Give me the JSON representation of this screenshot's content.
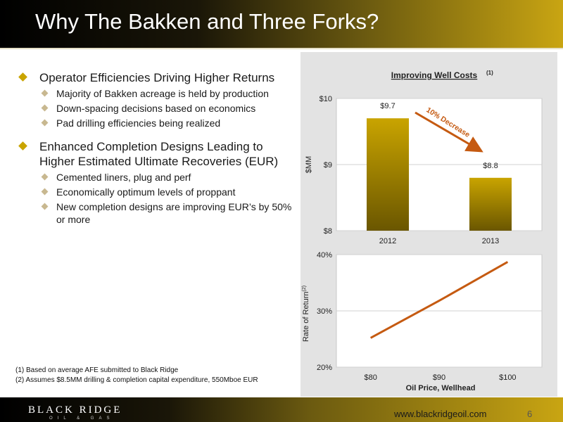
{
  "slide": {
    "title": "Why The Bakken and Three Forks?",
    "page_number": "6",
    "website": "www.blackridgeoil.com",
    "logo": {
      "name": "BLACK RIDGE",
      "subtitle": "OIL & GAS"
    }
  },
  "bullets": [
    {
      "text": "Operator Efficiencies Driving Higher Returns",
      "sub": [
        "Majority of Bakken acreage is held by production",
        "Down-spacing decisions based on economics",
        "Pad drilling efficiencies being realized"
      ]
    },
    {
      "text": "Enhanced Completion Designs Leading to Higher Estimated Ultimate Recoveries (EUR)",
      "sub": [
        "Cemented liners, plug and perf",
        "Economically optimum levels of proppant",
        "New completion designs are improving EUR’s by 50% or more"
      ]
    }
  ],
  "footnotes": [
    "(1)   Based on average AFE submitted to Black Ridge",
    "(2)   Assumes $8.5MM drilling & completion capital expenditure,  550Mboe EUR"
  ],
  "colors": {
    "bar": "#c9a400",
    "bar_dark": "#6a5600",
    "line": "#c55a11",
    "arrow": "#c55a11",
    "accent": "#c9a400"
  },
  "chart_data": [
    {
      "type": "bar",
      "title": "Improving Well Costs",
      "title_sup": "(1)",
      "ylabel": "$MM",
      "categories": [
        "2012",
        "2013"
      ],
      "values": [
        9.7,
        8.8
      ],
      "data_labels": [
        "$9.7",
        "$8.8"
      ],
      "ylim": [
        8,
        10
      ],
      "yticks": [
        8,
        9,
        10
      ],
      "ytick_labels": [
        "$8",
        "$9",
        "$10"
      ],
      "annotation": "10% Decrease"
    },
    {
      "type": "line",
      "xlabel": "Oil Price, Wellhead",
      "ylabel": "Rate of Return",
      "ylabel_sup": "(2)",
      "categories": [
        "$80",
        "$90",
        "$100"
      ],
      "x_values": [
        80,
        90,
        100
      ],
      "values": [
        25.2,
        31.8,
        38.7
      ],
      "ylim": [
        20,
        40
      ],
      "yticks": [
        20,
        30,
        40
      ],
      "ytick_labels": [
        "20%",
        "30%",
        "40%"
      ]
    }
  ]
}
